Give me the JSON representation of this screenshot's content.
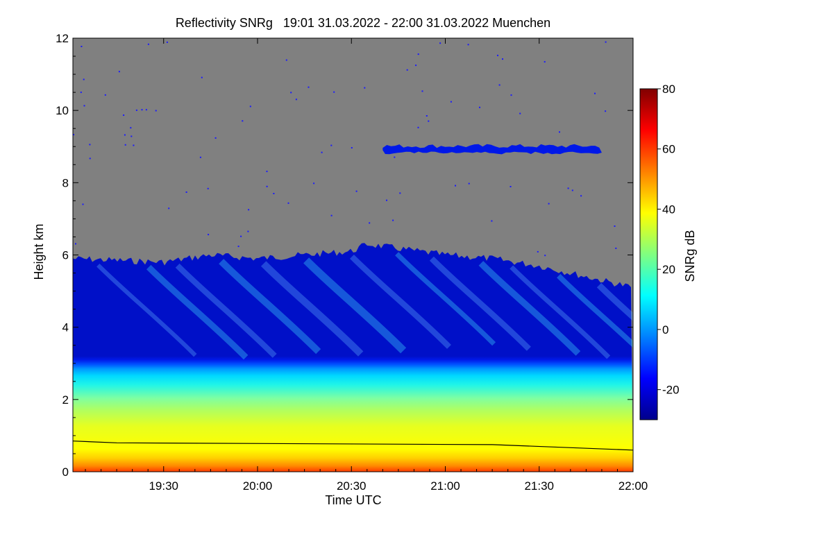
{
  "chart_data": {
    "type": "heatmap",
    "title": "Reflectivity SNRg   19:01 31.03.2022 - 22:00 31.03.2022 Muenchen",
    "xlabel": "Time UTC",
    "ylabel": "Height km",
    "colorbar_label": "SNRg dB",
    "x_range": [
      "19:01",
      "22:00"
    ],
    "x_ticks": [
      {
        "label": "19:30",
        "minutes_after_19": 30
      },
      {
        "label": "20:00",
        "minutes_after_19": 60
      },
      {
        "label": "20:30",
        "minutes_after_19": 90
      },
      {
        "label": "21:00",
        "minutes_after_19": 120
      },
      {
        "label": "21:30",
        "minutes_after_19": 150
      },
      {
        "label": "22:00",
        "minutes_after_19": 180
      }
    ],
    "y_range": [
      0,
      12
    ],
    "y_ticks": [
      0,
      2,
      4,
      6,
      8,
      10,
      12
    ],
    "colorbar_range": [
      -30,
      80
    ],
    "colorbar_ticks": [
      -20,
      0,
      20,
      40,
      60,
      80
    ],
    "colormap": [
      "#00008c",
      "#0000ff",
      "#0080ff",
      "#00ffff",
      "#80ff80",
      "#ffff00",
      "#ff8000",
      "#ff0000",
      "#800000"
    ],
    "no_data_color": "#808080",
    "echo_top_km": [
      {
        "time": "19:01",
        "height": 5.9
      },
      {
        "time": "19:30",
        "height": 5.8
      },
      {
        "time": "19:45",
        "height": 6.0
      },
      {
        "time": "20:00",
        "height": 5.9
      },
      {
        "time": "20:30",
        "height": 6.1
      },
      {
        "time": "20:35",
        "height": 6.3
      },
      {
        "time": "21:00",
        "height": 6.0
      },
      {
        "time": "21:15",
        "height": 5.9
      },
      {
        "time": "21:30",
        "height": 5.7
      },
      {
        "time": "21:45",
        "height": 5.4
      },
      {
        "time": "22:00",
        "height": 5.1
      }
    ],
    "upper_cloud_layer": {
      "time_start": "20:40",
      "time_end": "21:50",
      "height_km": 8.9
    },
    "boundary_line_km": [
      {
        "time": "19:01",
        "height": 0.85
      },
      {
        "time": "19:15",
        "height": 0.8
      },
      {
        "time": "21:15",
        "height": 0.75
      },
      {
        "time": "22:00",
        "height": 0.6
      }
    ]
  }
}
